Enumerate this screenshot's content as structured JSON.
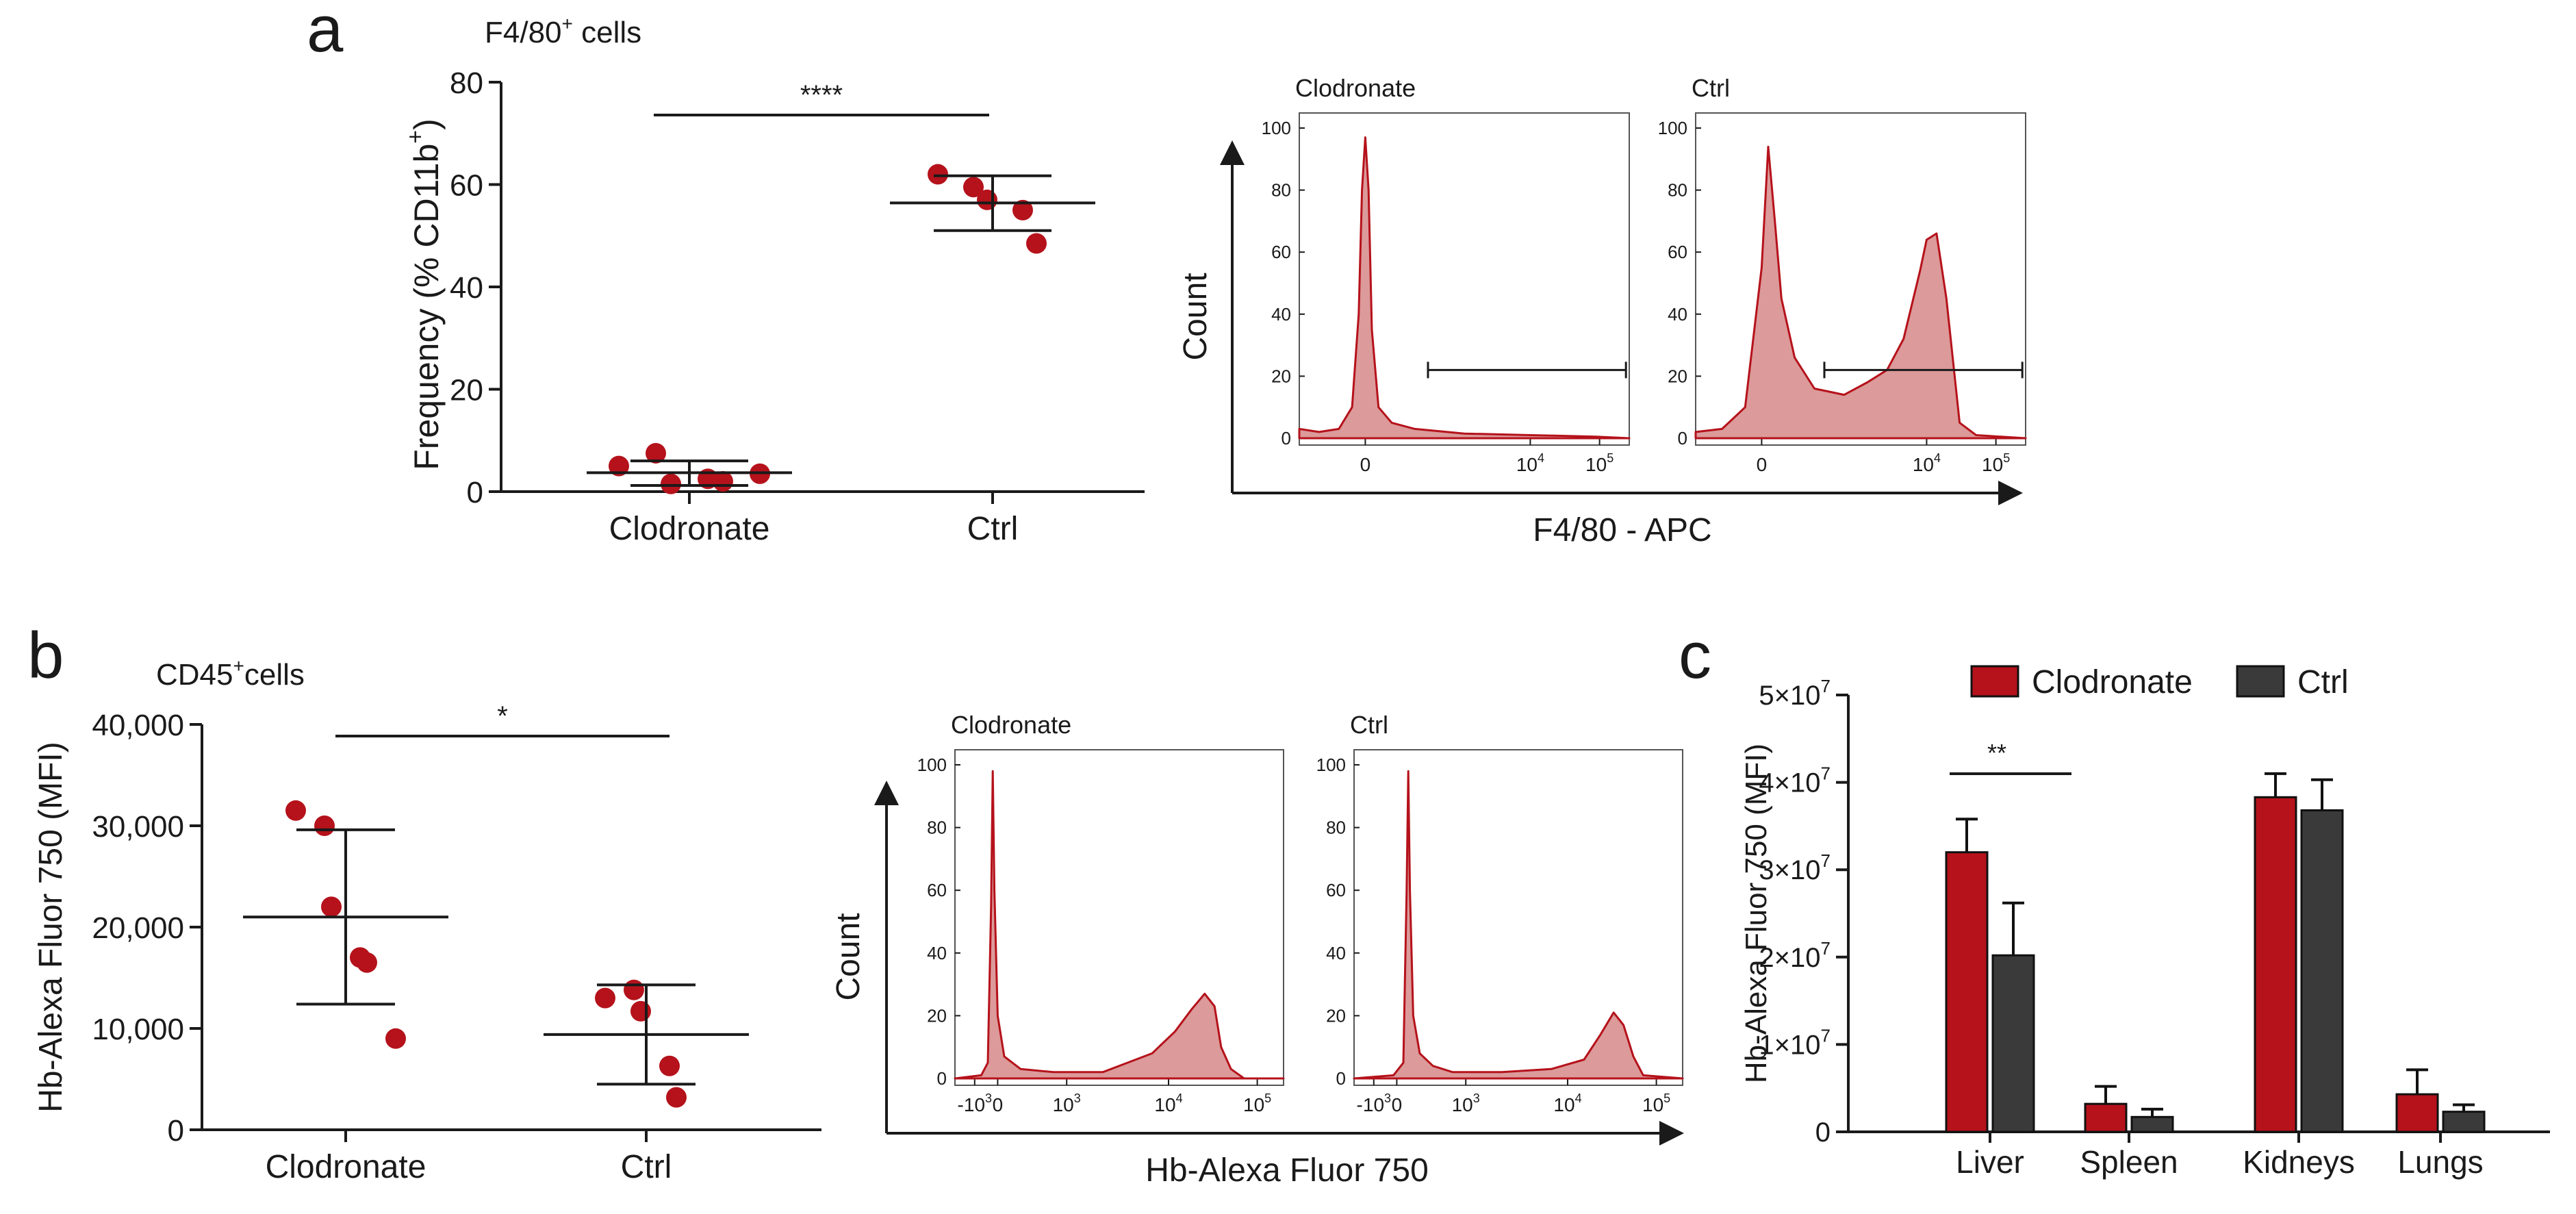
{
  "colors": {
    "red": "#b5121b",
    "dark": "#3a3a3a",
    "hist_fill": "#dc9a9a",
    "hist_line": "#b5121b",
    "axis": "#1a1a1a"
  },
  "chart_data": [
    {
      "panel": "a",
      "type": "scatter",
      "title": "F4/80⁺ cells",
      "ylabel": "Frequency (% CD11b⁺)",
      "ylim": [
        0,
        80
      ],
      "yticks": [
        0,
        20,
        40,
        60,
        80
      ],
      "categories": [
        "Clodronate",
        "Ctrl"
      ],
      "series": [
        {
          "name": "Clodronate",
          "values": [
            5,
            7.5,
            1.5,
            2.5,
            2,
            3.5
          ],
          "mean": 3.7,
          "sd_low": 1.2,
          "sd_high": 6.0
        },
        {
          "name": "Ctrl",
          "values": [
            62,
            59.5,
            57,
            55,
            48.5
          ],
          "mean": 56.4,
          "sd_low": 51.0,
          "sd_high": 61.7
        }
      ],
      "significance": "****"
    },
    {
      "panel": "a-hist",
      "type": "area",
      "xlabel": "F4/80 - APC",
      "ylabel": "Count",
      "yticks": [
        0,
        20,
        40,
        60,
        80,
        100
      ],
      "xtick_labels": [
        {
          "base": "0",
          "exp": "",
          "pos": 0.2
        },
        {
          "base": "10",
          "exp": "4",
          "pos": 0.7
        },
        {
          "base": "10",
          "exp": "5",
          "pos": 0.91
        }
      ],
      "panels": [
        {
          "name": "Clodronate",
          "x": [
            0,
            0.06,
            0.12,
            0.16,
            0.18,
            0.19,
            0.2,
            0.21,
            0.22,
            0.24,
            0.28,
            0.35,
            0.5,
            0.7,
            0.9,
            1
          ],
          "y": [
            3,
            2,
            3,
            10,
            40,
            80,
            97,
            80,
            35,
            10,
            5,
            3,
            1.5,
            1,
            0.5,
            0
          ],
          "gate": [
            0.39,
            0.99
          ]
        },
        {
          "name": "Ctrl",
          "x": [
            0,
            0.08,
            0.15,
            0.2,
            0.22,
            0.24,
            0.26,
            0.3,
            0.36,
            0.45,
            0.52,
            0.58,
            0.63,
            0.68,
            0.7,
            0.73,
            0.76,
            0.8,
            0.85,
            1
          ],
          "y": [
            2,
            3,
            10,
            55,
            94,
            70,
            45,
            26,
            16,
            14,
            18,
            22,
            32,
            54,
            64,
            66,
            45,
            5,
            1,
            0
          ],
          "gate": [
            0.39,
            0.99
          ]
        }
      ]
    },
    {
      "panel": "b",
      "type": "scatter",
      "title": "CD45⁺cells",
      "ylabel": "Hb-Alexa Fluor 750 (MFI)",
      "ylim": [
        0,
        40000
      ],
      "yticks": [
        0,
        10000,
        20000,
        30000,
        40000
      ],
      "ytick_labels": [
        "0",
        "10,000",
        "20,000",
        "30,000",
        "40,000"
      ],
      "categories": [
        "Clodronate",
        "Ctrl"
      ],
      "series": [
        {
          "name": "Clodronate",
          "values": [
            31500,
            30000,
            22000,
            17000,
            16500,
            9000
          ],
          "mean": 21000,
          "sd_low": 12400,
          "sd_high": 29600
        },
        {
          "name": "Ctrl",
          "values": [
            13000,
            13800,
            11700,
            6300,
            3200
          ],
          "mean": 9400,
          "sd_low": 4500,
          "sd_high": 14300
        }
      ],
      "significance": "*"
    },
    {
      "panel": "b-hist",
      "type": "area",
      "xlabel": "Hb-Alexa Fluor 750",
      "ylabel": "Count",
      "yticks": [
        0,
        20,
        40,
        60,
        80,
        100
      ],
      "xtick_labels": [
        {
          "base": "-10",
          "exp": "3",
          "pos": 0.06
        },
        {
          "base": "0",
          "exp": "",
          "pos": 0.13
        },
        {
          "base": "10",
          "exp": "3",
          "pos": 0.34
        },
        {
          "base": "10",
          "exp": "4",
          "pos": 0.65
        },
        {
          "base": "10",
          "exp": "5",
          "pos": 0.92
        }
      ],
      "panels": [
        {
          "name": "Clodronate",
          "x": [
            0,
            0.08,
            0.1,
            0.11,
            0.115,
            0.12,
            0.13,
            0.15,
            0.2,
            0.3,
            0.45,
            0.6,
            0.67,
            0.72,
            0.76,
            0.79,
            0.81,
            0.84,
            0.88,
            1
          ],
          "y": [
            0,
            1,
            5,
            55,
            98,
            60,
            20,
            7,
            3,
            2,
            2,
            8,
            15,
            22,
            27,
            23,
            10,
            3,
            0,
            0
          ]
        },
        {
          "name": "Ctrl",
          "x": [
            0,
            0.12,
            0.15,
            0.16,
            0.165,
            0.17,
            0.18,
            0.2,
            0.24,
            0.3,
            0.45,
            0.6,
            0.7,
            0.75,
            0.79,
            0.82,
            0.85,
            0.88,
            1
          ],
          "y": [
            0,
            1,
            5,
            60,
            98,
            60,
            20,
            8,
            4,
            2,
            2,
            3,
            6,
            14,
            21,
            17,
            7,
            1,
            0
          ]
        }
      ]
    },
    {
      "panel": "c",
      "type": "bar",
      "ylabel": "Hb-Alexa Fluor 750 (MFI)",
      "ylim": [
        0,
        50000000
      ],
      "yticks": [
        0,
        10000000,
        20000000,
        30000000,
        40000000,
        50000000
      ],
      "ytick_labels": [
        {
          "base": "0",
          "exp": ""
        },
        {
          "base": "1×10",
          "exp": "7"
        },
        {
          "base": "2×10",
          "exp": "7"
        },
        {
          "base": "3×10",
          "exp": "7"
        },
        {
          "base": "4×10",
          "exp": "7"
        },
        {
          "base": "5×10",
          "exp": "7"
        }
      ],
      "categories": [
        "Liver",
        "Spleen",
        "Kidneys",
        "Lungs"
      ],
      "series": [
        {
          "name": "Clodronate",
          "values": [
            32000000,
            3200000,
            38300000,
            4300000
          ],
          "err": [
            3800000,
            2000000,
            2700000,
            2800000
          ]
        },
        {
          "name": "Ctrl",
          "values": [
            20200000,
            1700000,
            36800000,
            2300000
          ],
          "err": [
            6000000,
            900000,
            3500000,
            800000
          ]
        }
      ],
      "significance": [
        {
          "category": "Liver",
          "label": "**"
        }
      ],
      "legend": "top-center"
    }
  ],
  "panel_labels": {
    "a": "a",
    "b": "b",
    "c": "c"
  },
  "text": {
    "a_title": "F4/80",
    "a_title_sup": "+",
    "a_title_tail": " cells",
    "a_ylabel_main": "Frequency (% CD11b",
    "a_ylabel_sup": "+",
    "a_ylabel_tail": ")",
    "b_title": "CD45",
    "b_title_sup": "+",
    "b_title_tail": "cells"
  }
}
